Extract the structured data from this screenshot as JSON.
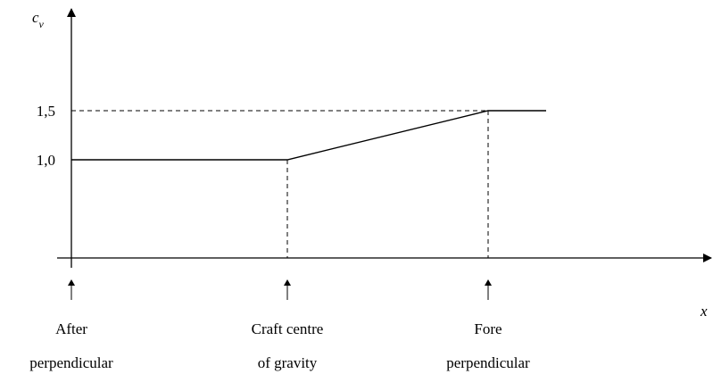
{
  "chart_data": {
    "type": "line",
    "ylabel": {
      "text": "c",
      "subscript": "v"
    },
    "xlabel": "x",
    "categories": [
      [
        "After",
        "perpendicular"
      ],
      [
        "Craft centre",
        "of gravity"
      ],
      [
        "Fore",
        "perpendicular"
      ],
      null
    ],
    "values": [
      1.0,
      1.0,
      1.5,
      1.5
    ],
    "color": "#000000",
    "ylim": [
      0,
      2.5
    ],
    "yticks": [
      {
        "value": 1.0,
        "label": "1,0"
      },
      {
        "value": 1.5,
        "label": "1,5"
      }
    ]
  }
}
